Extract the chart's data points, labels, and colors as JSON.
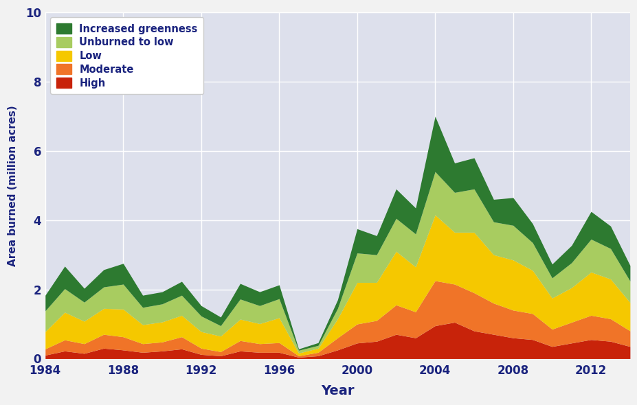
{
  "years": [
    1984,
    1985,
    1986,
    1987,
    1988,
    1989,
    1990,
    1991,
    1992,
    1993,
    1994,
    1995,
    1996,
    1997,
    1998,
    1999,
    2000,
    2001,
    2002,
    2003,
    2004,
    2005,
    2006,
    2007,
    2008,
    2009,
    2010,
    2011,
    2012,
    2013,
    2014
  ],
  "high": [
    0.1,
    0.22,
    0.15,
    0.3,
    0.25,
    0.18,
    0.22,
    0.28,
    0.12,
    0.08,
    0.22,
    0.18,
    0.18,
    0.04,
    0.08,
    0.25,
    0.45,
    0.5,
    0.7,
    0.6,
    0.95,
    1.05,
    0.8,
    0.7,
    0.6,
    0.55,
    0.35,
    0.45,
    0.55,
    0.5,
    0.35
  ],
  "moderate": [
    0.18,
    0.32,
    0.28,
    0.4,
    0.38,
    0.25,
    0.26,
    0.35,
    0.18,
    0.12,
    0.3,
    0.25,
    0.28,
    0.04,
    0.1,
    0.35,
    0.55,
    0.6,
    0.85,
    0.75,
    1.3,
    1.1,
    1.1,
    0.9,
    0.8,
    0.75,
    0.5,
    0.6,
    0.7,
    0.65,
    0.45
  ],
  "low": [
    0.5,
    0.8,
    0.65,
    0.75,
    0.8,
    0.55,
    0.58,
    0.62,
    0.48,
    0.45,
    0.62,
    0.58,
    0.72,
    0.08,
    0.12,
    0.55,
    1.2,
    1.1,
    1.55,
    1.3,
    1.9,
    1.5,
    1.75,
    1.4,
    1.45,
    1.25,
    0.9,
    1.0,
    1.25,
    1.15,
    0.82
  ],
  "unburned_to_low": [
    0.6,
    0.68,
    0.55,
    0.62,
    0.72,
    0.5,
    0.52,
    0.58,
    0.45,
    0.3,
    0.58,
    0.52,
    0.55,
    0.08,
    0.08,
    0.3,
    0.85,
    0.8,
    0.95,
    0.95,
    1.25,
    1.15,
    1.25,
    0.95,
    1.0,
    0.8,
    0.58,
    0.72,
    0.95,
    0.88,
    0.62
  ],
  "increased_greenness": [
    0.45,
    0.65,
    0.4,
    0.5,
    0.6,
    0.35,
    0.35,
    0.4,
    0.3,
    0.25,
    0.45,
    0.4,
    0.4,
    0.04,
    0.08,
    0.25,
    0.7,
    0.55,
    0.85,
    0.75,
    1.6,
    0.85,
    0.9,
    0.65,
    0.8,
    0.55,
    0.4,
    0.5,
    0.8,
    0.65,
    0.45
  ],
  "colors": {
    "high": "#c8230a",
    "moderate": "#f07428",
    "low": "#f5c800",
    "unburned_to_low": "#a8cc60",
    "increased_greenness": "#2d7a30"
  },
  "xlabel": "Year",
  "ylabel": "Area burned (million acres)",
  "ylim": [
    0,
    10
  ],
  "yticks": [
    0,
    2,
    4,
    6,
    8,
    10
  ],
  "xticks": [
    1984,
    1988,
    1992,
    1996,
    2000,
    2004,
    2008,
    2012
  ],
  "plot_bg": "#dde0ec",
  "fig_bg": "#f2f2f2"
}
